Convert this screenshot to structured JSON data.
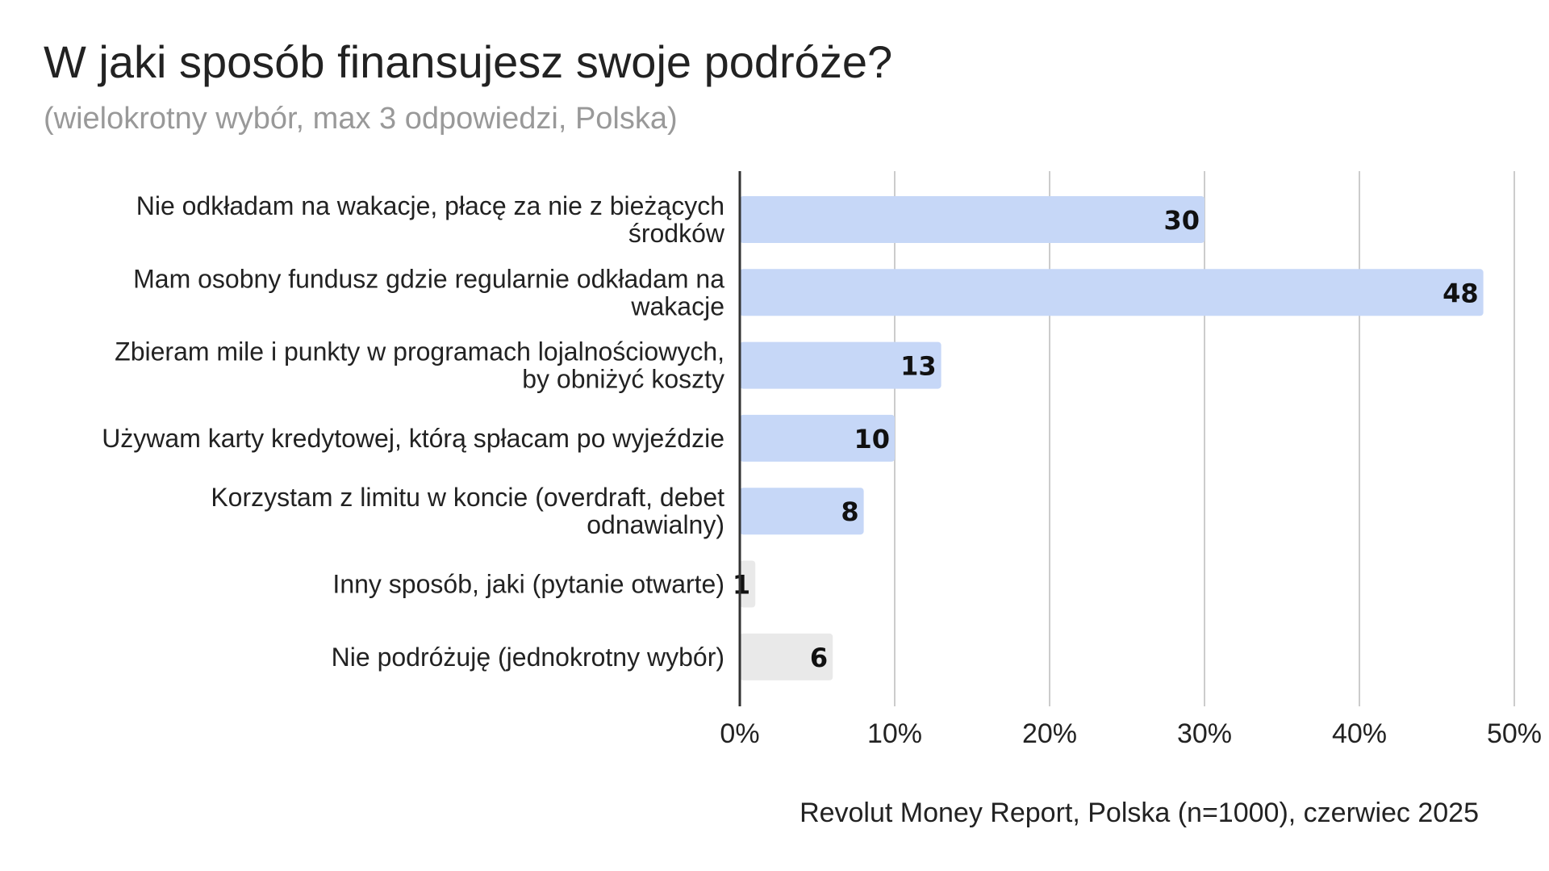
{
  "title": "W jaki sposób finansujesz swoje podróże?",
  "subtitle": "(wielokrotny wybór, max 3 odpowiedzi, Polska)",
  "source": "Revolut Money Report, Polska (n=1000), czerwiec 2025",
  "chart_data": {
    "type": "bar",
    "orientation": "horizontal",
    "title": "W jaki sposób finansujesz swoje podróże?",
    "subtitle": "(wielokrotny wybór, max 3 odpowiedzi, Polska)",
    "xlabel": "",
    "ylabel": "",
    "xlim": [
      0,
      50
    ],
    "xticks": [
      0,
      10,
      20,
      30,
      40,
      50
    ],
    "xtick_labels": [
      "0%",
      "10%",
      "20%",
      "30%",
      "40%",
      "50%"
    ],
    "grid": "vertical",
    "categories": [
      [
        "Nie odkładam na wakacje, płacę za nie z bieżących",
        "środków"
      ],
      [
        "Mam osobny fundusz gdzie regularnie odkładam na",
        "wakacje"
      ],
      [
        "Zbieram mile i punkty w programach lojalnościowych,",
        "by obniżyć koszty"
      ],
      [
        "Używam karty kredytowej, którą spłacam po wyjeździe"
      ],
      [
        "Korzystam z limitu w koncie (overdraft, debet",
        "odnawialny)"
      ],
      [
        "Inny sposób, jaki (pytanie otwarte)"
      ],
      [
        "Nie podróżuję (jednokrotny wybór)"
      ]
    ],
    "values": [
      30,
      48,
      13,
      10,
      8,
      1,
      6
    ],
    "value_labels": [
      "30",
      "48",
      "13",
      "10",
      "8",
      "1",
      "6"
    ],
    "colors": [
      "#c6d7f7",
      "#c6d7f7",
      "#c6d7f7",
      "#c6d7f7",
      "#c6d7f7",
      "#e9e9e9",
      "#e9e9e9"
    ],
    "gridline_color": "#cccccc",
    "axis_color": "#333333"
  }
}
